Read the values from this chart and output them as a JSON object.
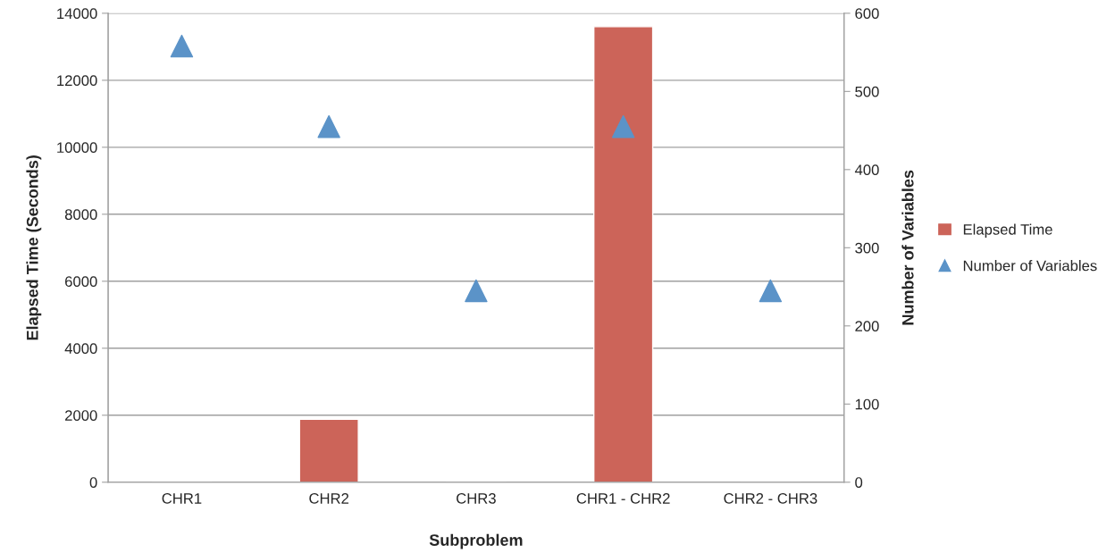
{
  "chart_data": {
    "type": "bar",
    "xlabel": "Subproblem",
    "ylabel": "Elapsed Time (Seconds)",
    "y2label": "Number of Variables",
    "categories": [
      "CHR1",
      "CHR2",
      "CHR3",
      "CHR1 - CHR2",
      "CHR2 - CHR3"
    ],
    "series": [
      {
        "name": "Elapsed Time",
        "color": "#cc6459",
        "values": [
          30,
          1880,
          30,
          13600,
          30
        ]
      },
      {
        "name": "Number of Variables",
        "type": "scatter",
        "axis": "y2",
        "marker": "triangle",
        "color": "#5b93c8",
        "values": [
          558,
          455,
          245,
          455,
          245
        ]
      }
    ],
    "ylim": [
      0,
      14000
    ],
    "yticks": [
      0,
      2000,
      4000,
      6000,
      8000,
      10000,
      12000,
      14000
    ],
    "y2lim": [
      0,
      600
    ],
    "y2ticks": [
      0,
      100,
      200,
      300,
      400,
      500,
      600
    ],
    "grid": "y",
    "legend": "right"
  }
}
